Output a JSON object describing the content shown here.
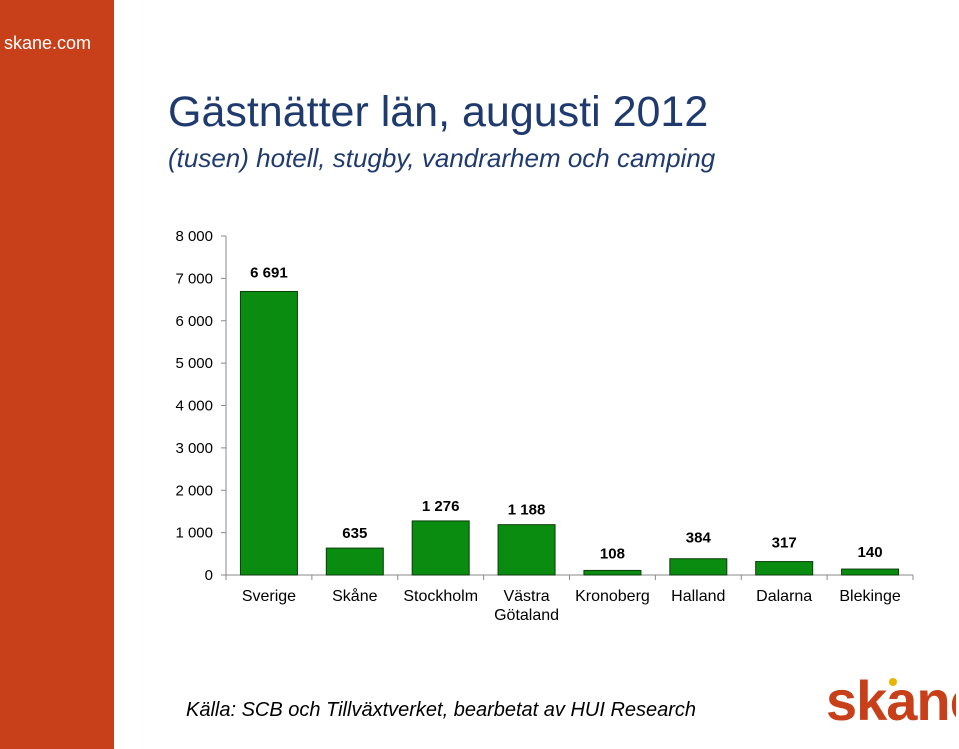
{
  "sidebar": {
    "site_label": "skane.com"
  },
  "header": {
    "title": "Gästnätter län, augusti 2012",
    "subtitle": "(tusen) hotell, stugby, vandrarhem och camping"
  },
  "footer": {
    "source": "Källa: SCB och Tillväxtverket, bearbetat av HUI Research"
  },
  "logo": {
    "text": "skane"
  },
  "colors": {
    "sidebar": "#c8401a",
    "bar": "#0a8c10",
    "bar_stroke": "#0b3d0b",
    "title": "#1f3a6e",
    "logo": "#c8401a"
  },
  "chart_data": {
    "type": "bar",
    "title": "",
    "xlabel": "",
    "ylabel": "",
    "ylim": [
      0,
      8000
    ],
    "yticks": [
      0,
      1000,
      2000,
      3000,
      4000,
      5000,
      6000,
      7000,
      8000
    ],
    "ytick_labels": [
      "0",
      "1 000",
      "2 000",
      "3 000",
      "4 000",
      "5 000",
      "6 000",
      "7 000",
      "8 000"
    ],
    "grid": false,
    "categories": [
      "Sverige",
      "Skåne",
      "Stockholm",
      "Västra\nGötaland",
      "Kronoberg",
      "Halland",
      "Dalarna",
      "Blekinge"
    ],
    "values": [
      6691,
      635,
      1276,
      1188,
      108,
      384,
      317,
      140
    ],
    "data_labels": [
      "6 691",
      "635",
      "1 276",
      "1 188",
      "108",
      "384",
      "317",
      "140"
    ]
  }
}
